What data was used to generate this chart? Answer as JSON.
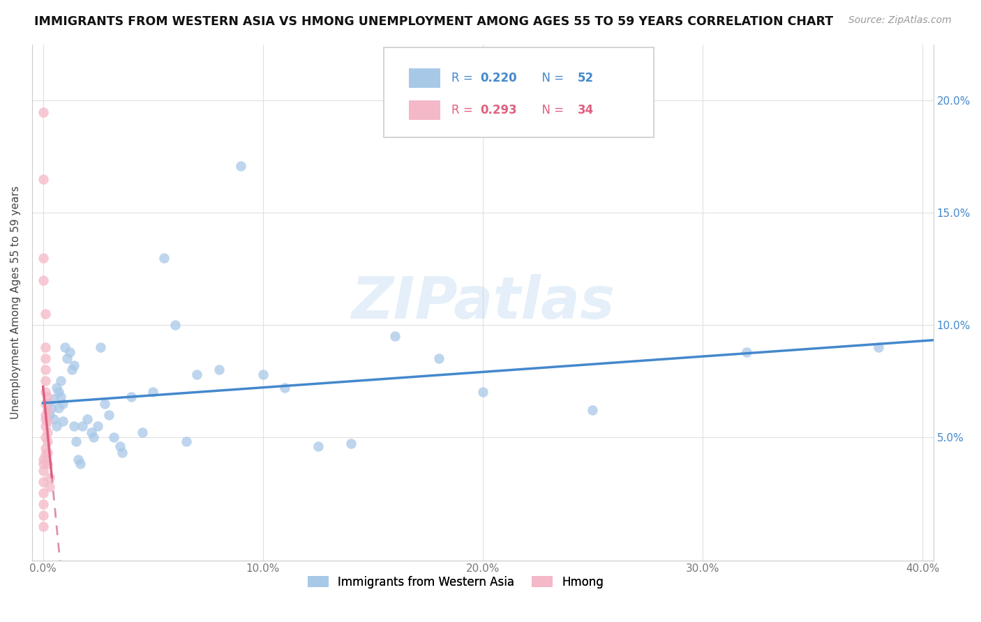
{
  "title": "IMMIGRANTS FROM WESTERN ASIA VS HMONG UNEMPLOYMENT AMONG AGES 55 TO 59 YEARS CORRELATION CHART",
  "source": "Source: ZipAtlas.com",
  "ylabel": "Unemployment Among Ages 55 to 59 years",
  "xlabel_blue": "Immigrants from Western Asia",
  "xlabel_pink": "Hmong",
  "xlim": [
    -0.005,
    0.405
  ],
  "ylim": [
    -0.005,
    0.225
  ],
  "xticks": [
    0.0,
    0.1,
    0.2,
    0.3,
    0.4
  ],
  "xticklabels": [
    "0.0%",
    "10.0%",
    "20.0%",
    "30.0%",
    "40.0%"
  ],
  "yticks": [
    0.05,
    0.1,
    0.15,
    0.2
  ],
  "yticklabels": [
    "5.0%",
    "10.0%",
    "15.0%",
    "20.0%"
  ],
  "legend_blue_r": "0.220",
  "legend_blue_n": "52",
  "legend_pink_r": "0.293",
  "legend_pink_n": "34",
  "blue_color": "#a8c8e8",
  "blue_line_color": "#4488cc",
  "pink_color": "#f4b8c8",
  "pink_line_color": "#e06080",
  "pink_dash_color": "#e090a8",
  "watermark": "ZIPatlas",
  "background_color": "#ffffff",
  "grid_color": "#e0e0e0",
  "blue_x": [
    0.002,
    0.003,
    0.004,
    0.005,
    0.005,
    0.006,
    0.006,
    0.007,
    0.007,
    0.008,
    0.008,
    0.009,
    0.009,
    0.01,
    0.011,
    0.012,
    0.013,
    0.014,
    0.014,
    0.015,
    0.016,
    0.017,
    0.018,
    0.02,
    0.022,
    0.023,
    0.025,
    0.026,
    0.028,
    0.03,
    0.032,
    0.035,
    0.036,
    0.04,
    0.045,
    0.05,
    0.055,
    0.06,
    0.065,
    0.07,
    0.08,
    0.09,
    0.1,
    0.11,
    0.125,
    0.14,
    0.16,
    0.18,
    0.2,
    0.25,
    0.32,
    0.38
  ],
  "blue_y": [
    0.065,
    0.06,
    0.063,
    0.067,
    0.058,
    0.072,
    0.055,
    0.07,
    0.063,
    0.075,
    0.068,
    0.065,
    0.057,
    0.09,
    0.085,
    0.088,
    0.08,
    0.082,
    0.055,
    0.048,
    0.04,
    0.038,
    0.055,
    0.058,
    0.052,
    0.05,
    0.055,
    0.09,
    0.065,
    0.06,
    0.05,
    0.046,
    0.043,
    0.068,
    0.052,
    0.07,
    0.13,
    0.1,
    0.048,
    0.078,
    0.08,
    0.171,
    0.078,
    0.072,
    0.046,
    0.047,
    0.095,
    0.085,
    0.07,
    0.062,
    0.088,
    0.09
  ],
  "pink_x": [
    0.0,
    0.0,
    0.0,
    0.0,
    0.0,
    0.0,
    0.0,
    0.0,
    0.0,
    0.0,
    0.0,
    0.0,
    0.001,
    0.001,
    0.001,
    0.001,
    0.001,
    0.001,
    0.001,
    0.001,
    0.001,
    0.001,
    0.001,
    0.001,
    0.001,
    0.002,
    0.002,
    0.002,
    0.002,
    0.002,
    0.002,
    0.002,
    0.003,
    0.003
  ],
  "pink_y": [
    0.195,
    0.165,
    0.13,
    0.12,
    0.01,
    0.015,
    0.02,
    0.025,
    0.03,
    0.035,
    0.038,
    0.04,
    0.105,
    0.09,
    0.085,
    0.08,
    0.075,
    0.07,
    0.065,
    0.06,
    0.058,
    0.055,
    0.05,
    0.045,
    0.042,
    0.068,
    0.062,
    0.057,
    0.052,
    0.048,
    0.043,
    0.038,
    0.032,
    0.028
  ]
}
